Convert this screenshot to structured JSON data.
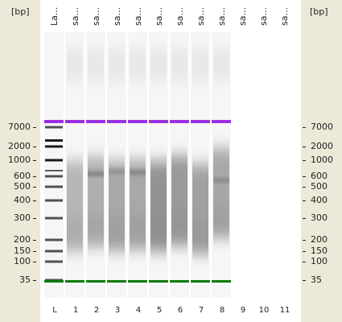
{
  "axis": {
    "unit_left": "[bp]",
    "unit_right": "[bp]",
    "ticks": [
      {
        "label": "7000",
        "bp": 7000
      },
      {
        "label": "2000",
        "bp": 2000
      },
      {
        "label": "1000",
        "bp": 1000
      },
      {
        "label": "600",
        "bp": 600
      },
      {
        "label": "500",
        "bp": 500
      },
      {
        "label": "400",
        "bp": 400
      },
      {
        "label": "300",
        "bp": 300
      },
      {
        "label": "200",
        "bp": 200
      },
      {
        "label": "150",
        "bp": 150
      },
      {
        "label": "100",
        "bp": 100
      },
      {
        "label": "35",
        "bp": 35
      }
    ]
  },
  "lanes": [
    {
      "header": "La...",
      "index": "L",
      "type": "ladder",
      "has_markers": true
    },
    {
      "header": "sa...",
      "index": "1",
      "type": "sample",
      "has_markers": true,
      "smear_center_bp": 420,
      "smear_strength": 0.45,
      "bands": []
    },
    {
      "header": "sa...",
      "index": "2",
      "type": "sample",
      "has_markers": true,
      "smear_center_bp": 450,
      "smear_strength": 0.5,
      "bands": [
        {
          "bp": 650,
          "strength": 0.5
        }
      ]
    },
    {
      "header": "sa...",
      "index": "3",
      "type": "sample",
      "has_markers": true,
      "smear_center_bp": 420,
      "smear_strength": 0.55,
      "bands": [
        {
          "bp": 700,
          "strength": 0.35
        }
      ]
    },
    {
      "header": "sa...",
      "index": "4",
      "type": "sample",
      "has_markers": true,
      "smear_center_bp": 430,
      "smear_strength": 0.55,
      "bands": [
        {
          "bp": 680,
          "strength": 0.45
        }
      ]
    },
    {
      "header": "sa...",
      "index": "5",
      "type": "sample",
      "has_markers": true,
      "smear_center_bp": 420,
      "smear_strength": 0.7,
      "bands": []
    },
    {
      "header": "sa...",
      "index": "6",
      "type": "sample",
      "has_markers": true,
      "smear_center_bp": 460,
      "smear_strength": 0.65,
      "bands": []
    },
    {
      "header": "sa...",
      "index": "7",
      "type": "sample",
      "has_markers": true,
      "smear_center_bp": 400,
      "smear_strength": 0.6,
      "bands": []
    },
    {
      "header": "sa...",
      "index": "8",
      "type": "sample",
      "has_markers": true,
      "smear_center_bp": 520,
      "smear_strength": 0.55,
      "bands": [
        {
          "bp": 560,
          "strength": 0.35
        }
      ]
    },
    {
      "header": "sa...",
      "index": "9",
      "type": "empty",
      "has_markers": false
    },
    {
      "header": "sa...",
      "index": "10",
      "type": "empty",
      "has_markers": false
    },
    {
      "header": "sa...",
      "index": "11",
      "type": "empty",
      "has_markers": false
    }
  ],
  "ladder_bands_bp": [
    7000,
    2000,
    1000,
    600,
    500,
    400,
    300,
    200,
    150,
    100,
    35
  ],
  "colors": {
    "margin": "#ece9d8",
    "upper_marker": "#9b30e0",
    "lower_marker": "#0a7a0a",
    "band": "#3a3a3a",
    "text": "#222222"
  }
}
